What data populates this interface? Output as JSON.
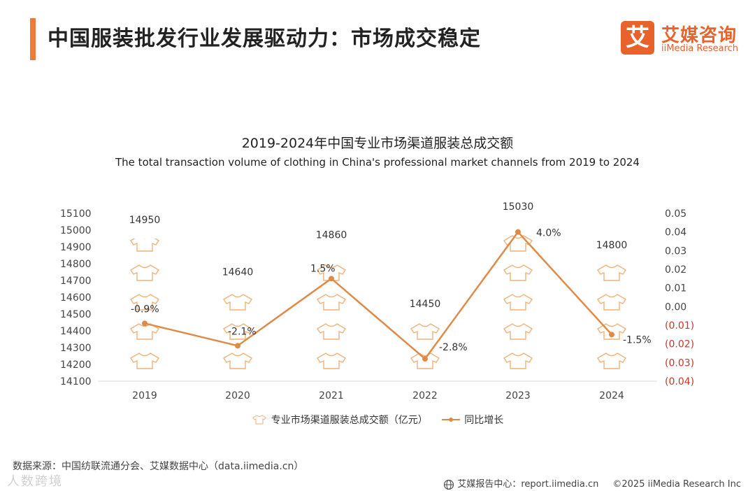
{
  "header": {
    "title": "中国服装批发行业发展驱动力：市场成交稳定",
    "logo_mark": "艾",
    "logo_cn": "艾媒咨询",
    "logo_en": "iiMedia Research"
  },
  "colors": {
    "accent": "#ee7a3a",
    "line": "#e08a48",
    "negative": "#c0392b",
    "shirt_stroke": "#f0b27a"
  },
  "chart_data": {
    "type": "bar",
    "title": "2019-2024年中国专业市场渠道服装总成交额",
    "subtitle": "The total transaction volume of clothing in China's professional market channels from 2019 to 2024",
    "categories": [
      "2019",
      "2020",
      "2021",
      "2022",
      "2023",
      "2024"
    ],
    "series": [
      {
        "name": "专业市场渠道服装总成交额（亿元）",
        "type": "pictorial-bar",
        "axis": "left",
        "values": [
          14950,
          14640,
          14860,
          14450,
          15030,
          14800
        ],
        "labels": [
          "14950",
          "14640",
          "14860",
          "14450",
          "15030",
          "14800"
        ]
      },
      {
        "name": "同比增长",
        "type": "line",
        "axis": "right",
        "values": [
          -0.009,
          -0.021,
          0.015,
          -0.028,
          0.04,
          -0.015
        ],
        "labels": [
          "-0.9%",
          "-2.1%",
          "1.5%",
          "-2.8%",
          "4.0%",
          "-1.5%"
        ]
      }
    ],
    "y_left": {
      "min": 14100,
      "max": 15100,
      "step": 100,
      "ticks": [
        "15100",
        "15000",
        "14900",
        "14800",
        "14700",
        "14600",
        "14500",
        "14400",
        "14300",
        "14200",
        "14100"
      ]
    },
    "y_right": {
      "min": -0.04,
      "max": 0.05,
      "step": 0.01,
      "ticks": [
        "0.05",
        "0.04",
        "0.03",
        "0.02",
        "0.01",
        "0.00",
        "(0.01)",
        "(0.02)",
        "(0.03)",
        "(0.04)"
      ]
    },
    "legend_position": "bottom"
  },
  "legend": {
    "bar_label": "专业市场渠道服装总成交额（亿元）",
    "line_label": "同比增长"
  },
  "source": "数据来源：中国纺联流通分会、艾媒数据中心（data.iimedia.cn）",
  "watermark": "人数跨境",
  "footer": {
    "center": "艾媒报告中心：report.iimedia.cn",
    "copyright": "©2025  iiMedia Research  Inc"
  }
}
